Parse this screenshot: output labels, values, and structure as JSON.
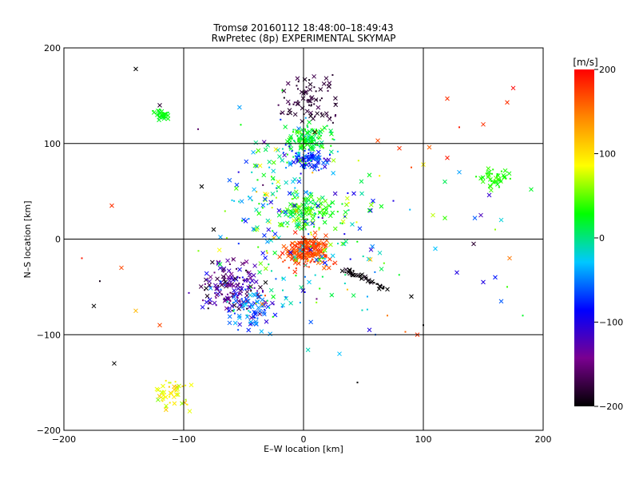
{
  "chart_data": {
    "type": "scatter",
    "title": "Tromsø 20160112 18:48:00–18:49:43",
    "subtitle": "RwPretec (8p) EXPERIMENTAL SKYMAP",
    "xlabel": "E–W location [km]",
    "ylabel": "N–S location [km]",
    "xlim": [
      -200,
      200
    ],
    "ylim": [
      -200,
      200
    ],
    "xticks": [
      -200,
      -100,
      0,
      100,
      200
    ],
    "yticks": [
      -200,
      -100,
      0,
      100,
      200
    ],
    "grid": true,
    "colorbar": {
      "label": "[m/s]",
      "range": [
        -200,
        200
      ],
      "ticks": [
        200,
        100,
        0,
        -100,
        -200
      ],
      "colormap": [
        "#000000",
        "#7a0090",
        "#0000ff",
        "#00c8ff",
        "#00ff00",
        "#ffff00",
        "#ff8800",
        "#ff0000"
      ]
    },
    "clusters": [
      {
        "cx": 3,
        "cy": -13,
        "rx": 18,
        "ry": 16,
        "v": 170,
        "n": 220,
        "spread": 50
      },
      {
        "cx": 5,
        "cy": 106,
        "rx": 18,
        "ry": 13,
        "v": 20,
        "n": 120,
        "spread": 60
      },
      {
        "cx": 5,
        "cy": 83,
        "rx": 16,
        "ry": 11,
        "v": -75,
        "n": 90,
        "spread": 80
      },
      {
        "cx": 3,
        "cy": 30,
        "rx": 20,
        "ry": 16,
        "v": 35,
        "n": 110,
        "spread": 70
      },
      {
        "cx": -118,
        "cy": 130,
        "rx": 7,
        "ry": 6,
        "v": 25,
        "n": 30,
        "spread": 20
      },
      {
        "cx": 158,
        "cy": 63,
        "rx": 11,
        "ry": 10,
        "v": 35,
        "n": 40,
        "spread": 25
      },
      {
        "cx": -60,
        "cy": -50,
        "rx": 28,
        "ry": 28,
        "v": -140,
        "n": 170,
        "spread": 120
      },
      {
        "cx": -42,
        "cy": -75,
        "rx": 22,
        "ry": 20,
        "v": -60,
        "n": 70,
        "spread": 110
      },
      {
        "cx": -110,
        "cy": -160,
        "rx": 16,
        "ry": 16,
        "v": 90,
        "n": 40,
        "spread": 70
      },
      {
        "cx": 5,
        "cy": 145,
        "rx": 22,
        "ry": 25,
        "v": -180,
        "n": 80,
        "spread": 30
      },
      {
        "cx": -25,
        "cy": 60,
        "rx": 35,
        "ry": 70,
        "v": 0,
        "n": 90,
        "spread": 220
      },
      {
        "cx": 0,
        "cy": 10,
        "rx": 70,
        "ry": 90,
        "v": 0,
        "n": 200,
        "spread": 240
      }
    ],
    "streaks": [
      {
        "x0": 35,
        "y0": -33,
        "x1": 70,
        "y1": -52,
        "v": -200,
        "n": 45,
        "spread": 10
      }
    ],
    "scatter_bg": [
      {
        "x": -160,
        "y": 35,
        "v": 180
      },
      {
        "x": -185,
        "y": -20,
        "v": 190
      },
      {
        "x": -175,
        "y": -70,
        "v": -200
      },
      {
        "x": -152,
        "y": -30,
        "v": 170
      },
      {
        "x": -140,
        "y": -75,
        "v": 120
      },
      {
        "x": -170,
        "y": -44,
        "v": -190
      },
      {
        "x": -140,
        "y": 178,
        "v": -200
      },
      {
        "x": -120,
        "y": 140,
        "v": -180
      },
      {
        "x": -88,
        "y": 115,
        "v": -160
      },
      {
        "x": -120,
        "y": -90,
        "v": 170
      },
      {
        "x": -95,
        "y": -180,
        "v": 80
      },
      {
        "x": -158,
        "y": -130,
        "v": -200
      },
      {
        "x": 120,
        "y": 147,
        "v": 180
      },
      {
        "x": 150,
        "y": 120,
        "v": 180
      },
      {
        "x": 175,
        "y": 158,
        "v": 200
      },
      {
        "x": 170,
        "y": 143,
        "v": 180
      },
      {
        "x": 130,
        "y": 117,
        "v": 190
      },
      {
        "x": 105,
        "y": 96,
        "v": 160
      },
      {
        "x": 120,
        "y": 85,
        "v": 190
      },
      {
        "x": 130,
        "y": 70,
        "v": -40
      },
      {
        "x": 155,
        "y": 46,
        "v": -110
      },
      {
        "x": 148,
        "y": 25,
        "v": -120
      },
      {
        "x": 143,
        "y": 22,
        "v": -60
      },
      {
        "x": 118,
        "y": 22,
        "v": 40
      },
      {
        "x": 108,
        "y": 25,
        "v": 70
      },
      {
        "x": 110,
        "y": -10,
        "v": -30
      },
      {
        "x": 142,
        "y": -5,
        "v": -180
      },
      {
        "x": 160,
        "y": 10,
        "v": 60
      },
      {
        "x": 165,
        "y": 20,
        "v": -20
      },
      {
        "x": 190,
        "y": 52,
        "v": 20
      },
      {
        "x": 128,
        "y": -35,
        "v": -100
      },
      {
        "x": 150,
        "y": -45,
        "v": -100
      },
      {
        "x": 160,
        "y": -40,
        "v": -80
      },
      {
        "x": 165,
        "y": -65,
        "v": -60
      },
      {
        "x": 170,
        "y": -50,
        "v": 40
      },
      {
        "x": 183,
        "y": -80,
        "v": 20
      },
      {
        "x": 172,
        "y": -20,
        "v": 150
      },
      {
        "x": 90,
        "y": -60,
        "v": -200
      },
      {
        "x": 100,
        "y": -90,
        "v": -200
      },
      {
        "x": 95,
        "y": -100,
        "v": 180
      },
      {
        "x": 85,
        "y": -97,
        "v": 160
      },
      {
        "x": 55,
        "y": -95,
        "v": -100
      },
      {
        "x": 70,
        "y": -80,
        "v": 150
      },
      {
        "x": 45,
        "y": -150,
        "v": -200
      },
      {
        "x": 30,
        "y": -120,
        "v": -30
      },
      {
        "x": 60,
        "y": -100,
        "v": -60
      },
      {
        "x": 118,
        "y": 60,
        "v": 10
      },
      {
        "x": 62,
        "y": 103,
        "v": 170
      },
      {
        "x": 80,
        "y": 95,
        "v": 180
      },
      {
        "x": 90,
        "y": 75,
        "v": 170
      },
      {
        "x": 100,
        "y": 78,
        "v": 90
      },
      {
        "x": 75,
        "y": 40,
        "v": -100
      },
      {
        "x": 55,
        "y": 30,
        "v": 30
      },
      {
        "x": 58,
        "y": 40,
        "v": -80
      },
      {
        "x": -85,
        "y": 55,
        "v": -200
      },
      {
        "x": -75,
        "y": 10,
        "v": -200
      }
    ]
  }
}
